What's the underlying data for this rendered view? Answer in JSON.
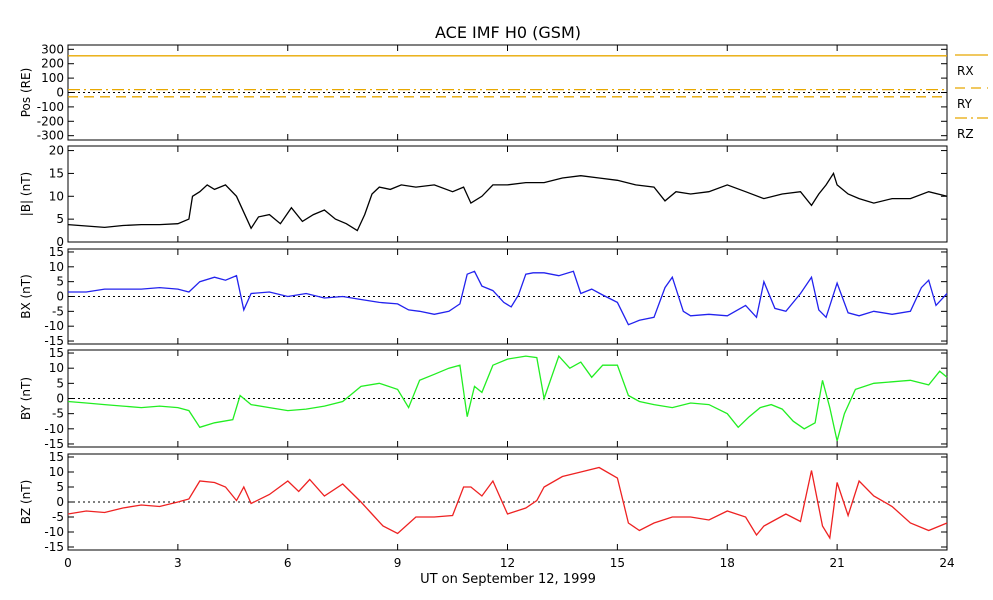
{
  "title": "ACE IMF H0 (GSM)",
  "xlabel": "UT on September 12, 1999",
  "x_ticks": [
    "0",
    "3",
    "6",
    "9",
    "12",
    "15",
    "18",
    "21",
    "24"
  ],
  "colors": {
    "bmag": "#000000",
    "bx": "#2222ee",
    "by": "#22ee22",
    "bz": "#ee2222",
    "pos": "#e8a800"
  },
  "chart_data": [
    {
      "type": "line",
      "ylabel": "Pos (RE)",
      "ylim": [
        -330,
        330
      ],
      "y_ticks": [
        300,
        200,
        100,
        0,
        -100,
        -200,
        -300
      ],
      "zero_line": true,
      "x": [
        0,
        24
      ],
      "series": [
        {
          "name": "RX",
          "values": [
            255,
            255
          ]
        },
        {
          "name": "RY",
          "values": [
            -30,
            -30
          ]
        },
        {
          "name": "RZ",
          "values": [
            20,
            20
          ]
        }
      ],
      "legend": [
        "RX",
        "RY",
        "RZ"
      ]
    },
    {
      "type": "line",
      "ylabel": "|B| (nT)",
      "ylim": [
        0,
        21
      ],
      "y_ticks": [
        20,
        15,
        10,
        5,
        0
      ],
      "zero_line": false,
      "x": [
        0,
        0.5,
        1,
        1.5,
        2,
        2.5,
        3,
        3.3,
        3.4,
        3.6,
        3.8,
        4.0,
        4.3,
        4.6,
        4.8,
        5.0,
        5.2,
        5.5,
        5.8,
        6.1,
        6.4,
        6.7,
        7.0,
        7.3,
        7.6,
        7.9,
        8.1,
        8.3,
        8.5,
        8.8,
        9.1,
        9.5,
        10.0,
        10.5,
        10.8,
        11.0,
        11.3,
        11.6,
        12.0,
        12.5,
        13.0,
        13.5,
        14.0,
        14.5,
        15.0,
        15.5,
        16.0,
        16.3,
        16.6,
        17.0,
        17.5,
        18.0,
        18.5,
        19.0,
        19.5,
        20.0,
        20.3,
        20.5,
        20.7,
        20.9,
        21.0,
        21.3,
        21.6,
        22.0,
        22.5,
        23.0,
        23.5,
        24.0
      ],
      "series": [
        {
          "name": "",
          "values": [
            3.8,
            3.5,
            3.2,
            3.6,
            3.8,
            3.8,
            4.0,
            5.0,
            10.0,
            11.0,
            12.5,
            11.5,
            12.5,
            10.0,
            6.5,
            3.0,
            5.5,
            6.0,
            4.0,
            7.5,
            4.5,
            6.0,
            7.0,
            5.0,
            4.0,
            2.5,
            6.0,
            10.5,
            12.0,
            11.5,
            12.5,
            12.0,
            12.5,
            11.0,
            12.0,
            8.5,
            10.0,
            12.5,
            12.5,
            13.0,
            13.0,
            14.0,
            14.5,
            14.0,
            13.5,
            12.5,
            12.0,
            9.0,
            11.0,
            10.5,
            11.0,
            12.5,
            11.0,
            9.5,
            10.5,
            11.0,
            8.0,
            10.5,
            12.5,
            15.0,
            12.5,
            10.5,
            9.5,
            8.5,
            9.5,
            9.5,
            11.0,
            10.0
          ]
        }
      ]
    },
    {
      "type": "line",
      "ylabel": "BX (nT)",
      "ylim": [
        -16,
        16
      ],
      "y_ticks": [
        15,
        10,
        5,
        0,
        -5,
        -10,
        -15
      ],
      "zero_line": true,
      "x": [
        0,
        0.5,
        1,
        1.5,
        2,
        2.5,
        3,
        3.3,
        3.6,
        4.0,
        4.3,
        4.6,
        4.8,
        5.0,
        5.5,
        6.0,
        6.5,
        7.0,
        7.5,
        8.0,
        8.5,
        9.0,
        9.3,
        9.6,
        10.0,
        10.4,
        10.7,
        10.9,
        11.1,
        11.3,
        11.6,
        11.9,
        12.1,
        12.3,
        12.5,
        12.7,
        13.0,
        13.4,
        13.8,
        14.0,
        14.3,
        14.6,
        15.0,
        15.3,
        15.6,
        16.0,
        16.3,
        16.5,
        16.8,
        17.0,
        17.5,
        18.0,
        18.5,
        18.8,
        19.0,
        19.3,
        19.6,
        20.0,
        20.3,
        20.5,
        20.7,
        21.0,
        21.3,
        21.6,
        22.0,
        22.5,
        23.0,
        23.3,
        23.5,
        23.7,
        24.0
      ],
      "series": [
        {
          "name": "",
          "values": [
            1.5,
            1.5,
            2.5,
            2.5,
            2.5,
            3.0,
            2.5,
            1.5,
            5.0,
            6.5,
            5.5,
            7.0,
            -4.5,
            1.0,
            1.5,
            0.0,
            1.0,
            -0.5,
            0.0,
            -1.0,
            -2.0,
            -2.5,
            -4.5,
            -5.0,
            -6.0,
            -5.0,
            -2.5,
            7.5,
            8.5,
            3.5,
            2.0,
            -2.0,
            -3.5,
            0.5,
            7.5,
            8.0,
            8.0,
            7.0,
            8.5,
            1.0,
            2.5,
            0.5,
            -2.0,
            -9.5,
            -8.0,
            -7.0,
            3.0,
            6.5,
            -5.0,
            -6.5,
            -6.0,
            -6.5,
            -3.0,
            -7.0,
            5.0,
            -4.0,
            -5.0,
            1.0,
            6.5,
            -4.5,
            -7.0,
            4.5,
            -5.5,
            -6.5,
            -5.0,
            -6.0,
            -5.0,
            3.0,
            5.5,
            -3.0,
            1.0
          ]
        }
      ]
    },
    {
      "type": "line",
      "ylabel": "BY (nT)",
      "ylim": [
        -16,
        16
      ],
      "y_ticks": [
        15,
        10,
        5,
        0,
        -5,
        -10,
        -15
      ],
      "zero_line": true,
      "x": [
        0,
        0.5,
        1,
        1.5,
        2,
        2.5,
        3,
        3.3,
        3.6,
        4.0,
        4.5,
        4.7,
        5.0,
        5.5,
        6.0,
        6.5,
        7.0,
        7.5,
        8.0,
        8.5,
        9.0,
        9.3,
        9.6,
        10.0,
        10.4,
        10.7,
        10.9,
        11.1,
        11.3,
        11.6,
        12.0,
        12.5,
        12.8,
        13.0,
        13.4,
        13.7,
        14.0,
        14.3,
        14.6,
        15.0,
        15.3,
        15.6,
        16.0,
        16.5,
        17.0,
        17.5,
        18.0,
        18.3,
        18.6,
        18.9,
        19.2,
        19.5,
        19.8,
        20.1,
        20.4,
        20.6,
        20.8,
        21.0,
        21.2,
        21.5,
        22.0,
        22.5,
        23.0,
        23.5,
        23.8,
        24.0
      ],
      "series": [
        {
          "name": "",
          "values": [
            -1.0,
            -1.5,
            -2.0,
            -2.5,
            -3.0,
            -2.5,
            -3.0,
            -4.0,
            -9.5,
            -8.0,
            -7.0,
            1.0,
            -2.0,
            -3.0,
            -4.0,
            -3.5,
            -2.5,
            -1.0,
            4.0,
            5.0,
            3.0,
            -3.0,
            6.0,
            8.0,
            10.0,
            11.0,
            -6.0,
            4.0,
            2.0,
            11.0,
            13.0,
            14.0,
            13.5,
            0.0,
            14.0,
            10.0,
            12.0,
            7.0,
            11.0,
            11.0,
            1.0,
            -1.0,
            -2.0,
            -3.0,
            -1.5,
            -2.0,
            -5.0,
            -9.5,
            -6.0,
            -3.0,
            -2.0,
            -3.5,
            -7.5,
            -10.0,
            -8.0,
            6.0,
            -3.0,
            -14.0,
            -5.0,
            3.0,
            5.0,
            5.5,
            6.0,
            4.5,
            9.0,
            7.0
          ]
        }
      ]
    },
    {
      "type": "line",
      "ylabel": "BZ (nT)",
      "ylim": [
        -16,
        16
      ],
      "y_ticks": [
        15,
        10,
        5,
        0,
        -5,
        -10,
        -15
      ],
      "zero_line": true,
      "x": [
        0,
        0.5,
        1,
        1.5,
        2,
        2.5,
        3,
        3.3,
        3.6,
        4.0,
        4.3,
        4.6,
        4.8,
        5.0,
        5.5,
        6.0,
        6.3,
        6.6,
        7.0,
        7.5,
        8.0,
        8.3,
        8.6,
        9.0,
        9.5,
        10.0,
        10.5,
        10.8,
        11.0,
        11.3,
        11.6,
        12.0,
        12.5,
        12.8,
        13.0,
        13.5,
        14.0,
        14.5,
        15.0,
        15.3,
        15.6,
        16.0,
        16.5,
        17.0,
        17.5,
        18.0,
        18.5,
        18.8,
        19.0,
        19.3,
        19.6,
        20.0,
        20.3,
        20.6,
        20.8,
        21.0,
        21.3,
        21.6,
        22.0,
        22.5,
        23.0,
        23.5,
        24.0
      ],
      "series": [
        {
          "name": "",
          "values": [
            -4.0,
            -3.0,
            -3.5,
            -2.0,
            -1.0,
            -1.5,
            0.0,
            1.0,
            7.0,
            6.5,
            5.0,
            0.5,
            5.0,
            -0.5,
            2.5,
            7.0,
            3.5,
            7.5,
            2.0,
            6.0,
            0.0,
            -4.0,
            -8.0,
            -10.5,
            -5.0,
            -5.0,
            -4.5,
            5.0,
            5.0,
            2.0,
            7.0,
            -4.0,
            -2.0,
            0.5,
            5.0,
            8.5,
            10.0,
            11.5,
            8.0,
            -7.0,
            -9.5,
            -7.0,
            -5.0,
            -5.0,
            -6.0,
            -3.0,
            -5.0,
            -11.0,
            -8.0,
            -6.0,
            -4.0,
            -6.5,
            10.5,
            -8.0,
            -12.0,
            6.5,
            -4.5,
            7.0,
            2.0,
            -1.5,
            -7.0,
            -9.5,
            -7.0
          ]
        }
      ]
    }
  ]
}
